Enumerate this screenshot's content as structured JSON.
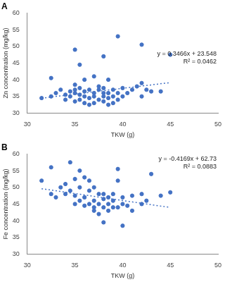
{
  "chart_data": [
    {
      "type": "scatter",
      "title": "A",
      "x_label": "TKW (g)",
      "y_label": "Zn concentration (mg/kg)",
      "color": "#4472c4",
      "marker": "circle",
      "grid": false,
      "xlim": [
        30,
        50
      ],
      "xticks": [
        30,
        35,
        40,
        45,
        50
      ],
      "ylim": [
        30,
        60
      ],
      "yticks": [
        30,
        35,
        40,
        45,
        50,
        55,
        60
      ],
      "x": [
        32.5,
        35,
        35.5,
        36,
        38,
        38.5,
        39.5,
        42,
        42,
        45,
        41.5,
        37,
        31.5,
        32.5,
        33.5,
        34,
        34.5,
        34.5,
        35,
        35,
        35,
        35.5,
        35.5,
        35.5,
        36,
        36,
        36,
        36.5,
        36.5,
        37,
        37,
        37,
        37.5,
        37.5,
        37.5,
        38,
        38,
        38,
        38,
        38.5,
        38.5,
        38.5,
        39,
        39,
        39,
        39.5,
        39.5,
        40,
        40,
        40.5,
        41,
        42,
        42.5,
        43,
        44,
        33,
        34,
        36.5,
        35
      ],
      "values": [
        40.5,
        49,
        44.5,
        40,
        47,
        40,
        53,
        50.5,
        39,
        47.5,
        38,
        41,
        34.5,
        35,
        37,
        35.5,
        35,
        36.5,
        33.5,
        36,
        37,
        34,
        35.5,
        37.5,
        33,
        35,
        36.5,
        34.5,
        37,
        33,
        35,
        36,
        34,
        37,
        38,
        33.5,
        35,
        36,
        37.5,
        32.5,
        34.5,
        36,
        33,
        35,
        37,
        34,
        36,
        35,
        37.5,
        36,
        37,
        35,
        37,
        36.5,
        36.5,
        36,
        34,
        32.5,
        38.5
      ],
      "trendline": {
        "slope": 0.3466,
        "intercept": 23.548,
        "line_style": "dotted"
      },
      "annotations": [
        "y = 0.3466x + 23.548",
        "R² = 0.0462"
      ]
    },
    {
      "type": "scatter",
      "title": "B",
      "x_label": "TKW (g)",
      "y_label": "Fe concentration (mg/kg)",
      "color": "#4472c4",
      "marker": "circle",
      "grid": false,
      "xlim": [
        30,
        50
      ],
      "xticks": [
        30,
        35,
        40,
        45,
        50
      ],
      "ylim": [
        30,
        60
      ],
      "yticks": [
        30,
        35,
        40,
        45,
        50,
        55,
        60
      ],
      "x": [
        31.5,
        32.5,
        32.5,
        33.5,
        34,
        34.5,
        34.5,
        35,
        35,
        35.5,
        35.5,
        35.5,
        36,
        36,
        36,
        36.5,
        36.5,
        37,
        37,
        37,
        37.5,
        37.5,
        37.5,
        38,
        38,
        38,
        38.5,
        38.5,
        38.5,
        39,
        39,
        39,
        39.5,
        39.5,
        39.5,
        40,
        40,
        40,
        40.5,
        41,
        41,
        42,
        42,
        42.5,
        43,
        44,
        45,
        34,
        35,
        36.5,
        37,
        38,
        33
      ],
      "values": [
        52,
        56,
        48,
        50,
        48,
        57.5,
        49,
        47.5,
        52.5,
        55,
        50,
        46,
        53,
        47,
        44.5,
        49,
        45,
        46,
        44,
        43,
        48,
        45,
        42,
        44,
        46.5,
        39.5,
        45,
        43,
        47,
        44,
        48,
        46,
        55.5,
        52,
        44,
        38.5,
        45,
        47,
        44.5,
        43,
        47.5,
        45,
        48,
        46,
        54,
        47.5,
        48.5,
        51,
        45,
        52,
        50,
        48,
        47
      ],
      "trendline": {
        "slope": -0.4169,
        "intercept": 62.73,
        "line_style": "dotted"
      },
      "annotations": [
        "y = -0.4169x + 62.73",
        "R² = 0.0883"
      ]
    }
  ]
}
